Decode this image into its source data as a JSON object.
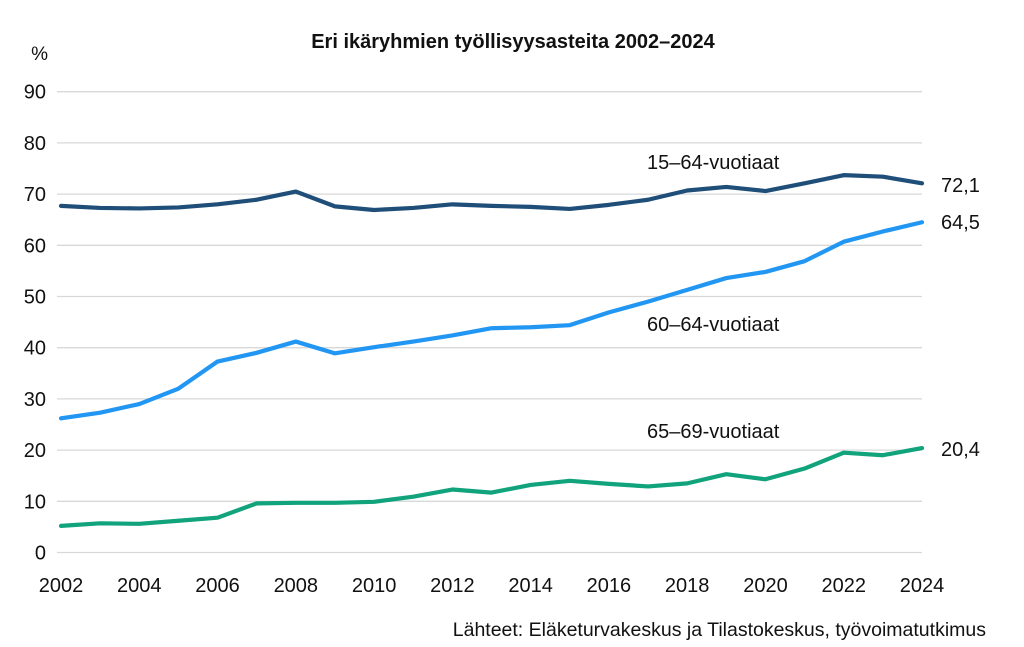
{
  "chart_data": {
    "type": "line",
    "title": "Eri ikäryhmien työllisyysasteita 2002–2024",
    "percent_label": "%",
    "source": "Lähteet: Eläketurvakeskus ja Tilastokeskus, työvoimatutkimus",
    "x": [
      2002,
      2003,
      2004,
      2005,
      2006,
      2007,
      2008,
      2009,
      2010,
      2011,
      2012,
      2013,
      2014,
      2015,
      2016,
      2017,
      2018,
      2019,
      2020,
      2021,
      2022,
      2023,
      2024
    ],
    "x_tick_labels": [
      "2002",
      "2004",
      "2006",
      "2008",
      "2010",
      "2012",
      "2014",
      "2016",
      "2018",
      "2020",
      "2022",
      "2024"
    ],
    "y_ticks": [
      0,
      10,
      20,
      30,
      40,
      50,
      60,
      70,
      80,
      90
    ],
    "ylim": [
      0,
      90
    ],
    "grid": "horizontal",
    "grid_color": "#d8d8d8",
    "series": [
      {
        "name": "15–64-vuotiaat",
        "color": "#1f4e79",
        "end_label": "72,1",
        "values": [
          67.7,
          67.3,
          67.2,
          67.4,
          68.0,
          68.9,
          70.5,
          67.6,
          66.9,
          67.3,
          68.0,
          67.7,
          67.5,
          67.1,
          67.9,
          68.9,
          70.7,
          71.4,
          70.6,
          72.1,
          73.7,
          73.4,
          72.1
        ]
      },
      {
        "name": "60–64-vuotiaat",
        "color": "#2196f3",
        "end_label": "64,5",
        "values": [
          26.2,
          27.3,
          29.0,
          32.0,
          37.3,
          39.0,
          41.2,
          38.9,
          40.1,
          41.2,
          42.4,
          43.8,
          44.0,
          44.4,
          46.9,
          49.0,
          51.3,
          53.6,
          54.8,
          56.9,
          60.7,
          62.7,
          64.5
        ]
      },
      {
        "name": "65–69-vuotiaat",
        "color": "#10a37c",
        "end_label": "20,4",
        "values": [
          5.2,
          5.7,
          5.6,
          6.2,
          6.8,
          9.6,
          9.7,
          9.7,
          9.9,
          10.9,
          12.3,
          11.7,
          13.2,
          14.0,
          13.4,
          12.9,
          13.5,
          15.3,
          14.3,
          16.4,
          19.5,
          19.0,
          20.4
        ]
      }
    ]
  }
}
